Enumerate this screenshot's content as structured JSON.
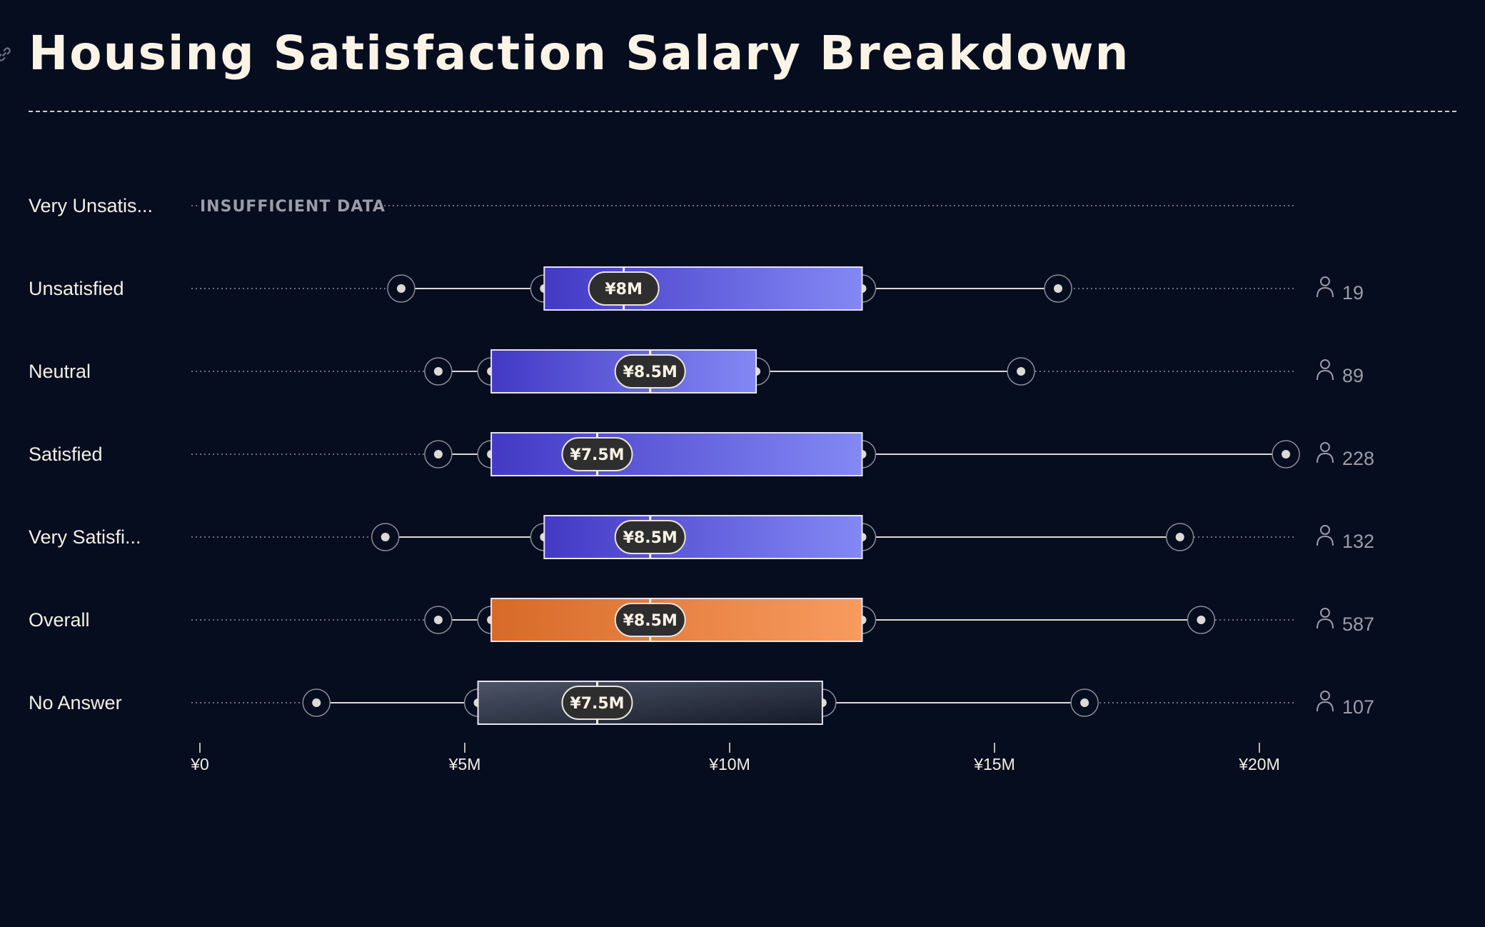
{
  "header": {
    "title": "Housing Satisfaction Salary Breakdown",
    "link_icon": "link-icon"
  },
  "chart_data": {
    "type": "boxplot",
    "orientation": "horizontal",
    "title": "Housing Satisfaction Salary Breakdown",
    "xlabel": "",
    "ylabel": "",
    "xlim": [
      0,
      21
    ],
    "unit": "¥M",
    "x_ticks": [
      {
        "value": 0,
        "label": "¥0"
      },
      {
        "value": 5,
        "label": "¥5M"
      },
      {
        "value": 10,
        "label": "¥10M"
      },
      {
        "value": 15,
        "label": "¥15M"
      },
      {
        "value": 20,
        "label": "¥20M"
      }
    ],
    "grid": false,
    "colors": {
      "default_start": "#4339c5",
      "default_end": "#8388f4",
      "overall_start": "#d76a28",
      "overall_end": "#f89b5f",
      "noanswer_start": "#4d5566",
      "noanswer_end": "#141a29",
      "whisker": "#dcdad4",
      "pill_bg": "#2e2e2e"
    },
    "categories": [
      {
        "label": "Very Unsatis...",
        "insufficient": true,
        "note": "INSUFFICIENT DATA"
      },
      {
        "label": "Unsatisfied",
        "min": 3.8,
        "q1": 6.5,
        "median": 8.0,
        "q3": 12.5,
        "max": 16.2,
        "median_label": "¥8M",
        "count": "19",
        "style": "default"
      },
      {
        "label": "Neutral",
        "min": 4.5,
        "q1": 5.5,
        "median": 8.5,
        "q3": 10.5,
        "max": 15.5,
        "median_label": "¥8.5M",
        "count": "89",
        "style": "default"
      },
      {
        "label": "Satisfied",
        "min": 4.5,
        "q1": 5.5,
        "median": 7.5,
        "q3": 12.5,
        "max": 20.5,
        "median_label": "¥7.5M",
        "count": "228",
        "style": "default"
      },
      {
        "label": "Very Satisfi...",
        "min": 3.5,
        "q1": 6.5,
        "median": 8.5,
        "q3": 12.5,
        "max": 18.5,
        "median_label": "¥8.5M",
        "count": "132",
        "style": "default"
      },
      {
        "label": "Overall",
        "min": 4.5,
        "q1": 5.5,
        "median": 8.5,
        "q3": 12.5,
        "max": 18.9,
        "median_label": "¥8.5M",
        "count": "587",
        "style": "overall"
      },
      {
        "label": "No Answer",
        "min": 2.2,
        "q1": 5.25,
        "median": 7.5,
        "q3": 11.75,
        "max": 16.7,
        "median_label": "¥7.5M",
        "count": "107",
        "style": "noanswer"
      }
    ]
  }
}
